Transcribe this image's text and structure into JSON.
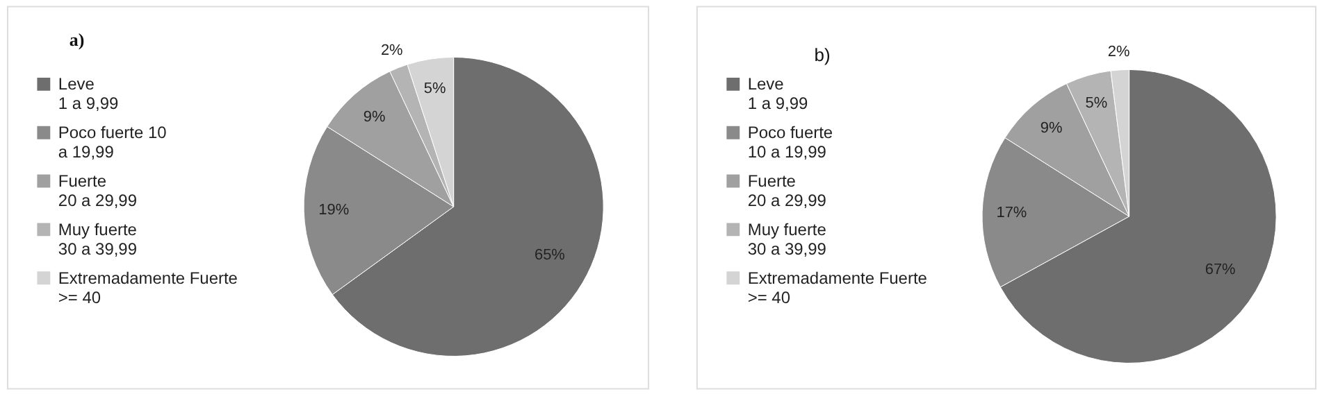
{
  "chart_data": [
    {
      "type": "pie",
      "title": "a)",
      "categories": [
        "Leve\n1 a 9,99",
        "Poco fuerte 10\na 19,99",
        "Fuerte\n20 a 29,99",
        "Muy fuerte\n30 a 39,99",
        "Extremadamente Fuerte\n>= 40"
      ],
      "values": [
        65,
        19,
        9,
        2,
        5
      ],
      "colors": [
        "#6e6e6e",
        "#8a8a8a",
        "#a0a0a0",
        "#b4b4b4",
        "#d4d4d4"
      ],
      "value_labels": [
        "65%",
        "19%",
        "9%",
        "2%",
        "5%"
      ],
      "legend": "left"
    },
    {
      "type": "pie",
      "title": "b)",
      "categories": [
        "Leve\n1 a 9,99",
        "Poco fuerte\n10 a 19,99",
        "Fuerte\n20 a 29,99",
        "Muy fuerte\n30 a 39,99",
        "Extremadamente Fuerte\n>= 40"
      ],
      "values": [
        67,
        17,
        9,
        5,
        2
      ],
      "colors": [
        "#6e6e6e",
        "#8a8a8a",
        "#a0a0a0",
        "#b4b4b4",
        "#d4d4d4"
      ],
      "value_labels": [
        "67%",
        "17%",
        "9%",
        "5%",
        "2%"
      ],
      "legend": "left"
    }
  ]
}
